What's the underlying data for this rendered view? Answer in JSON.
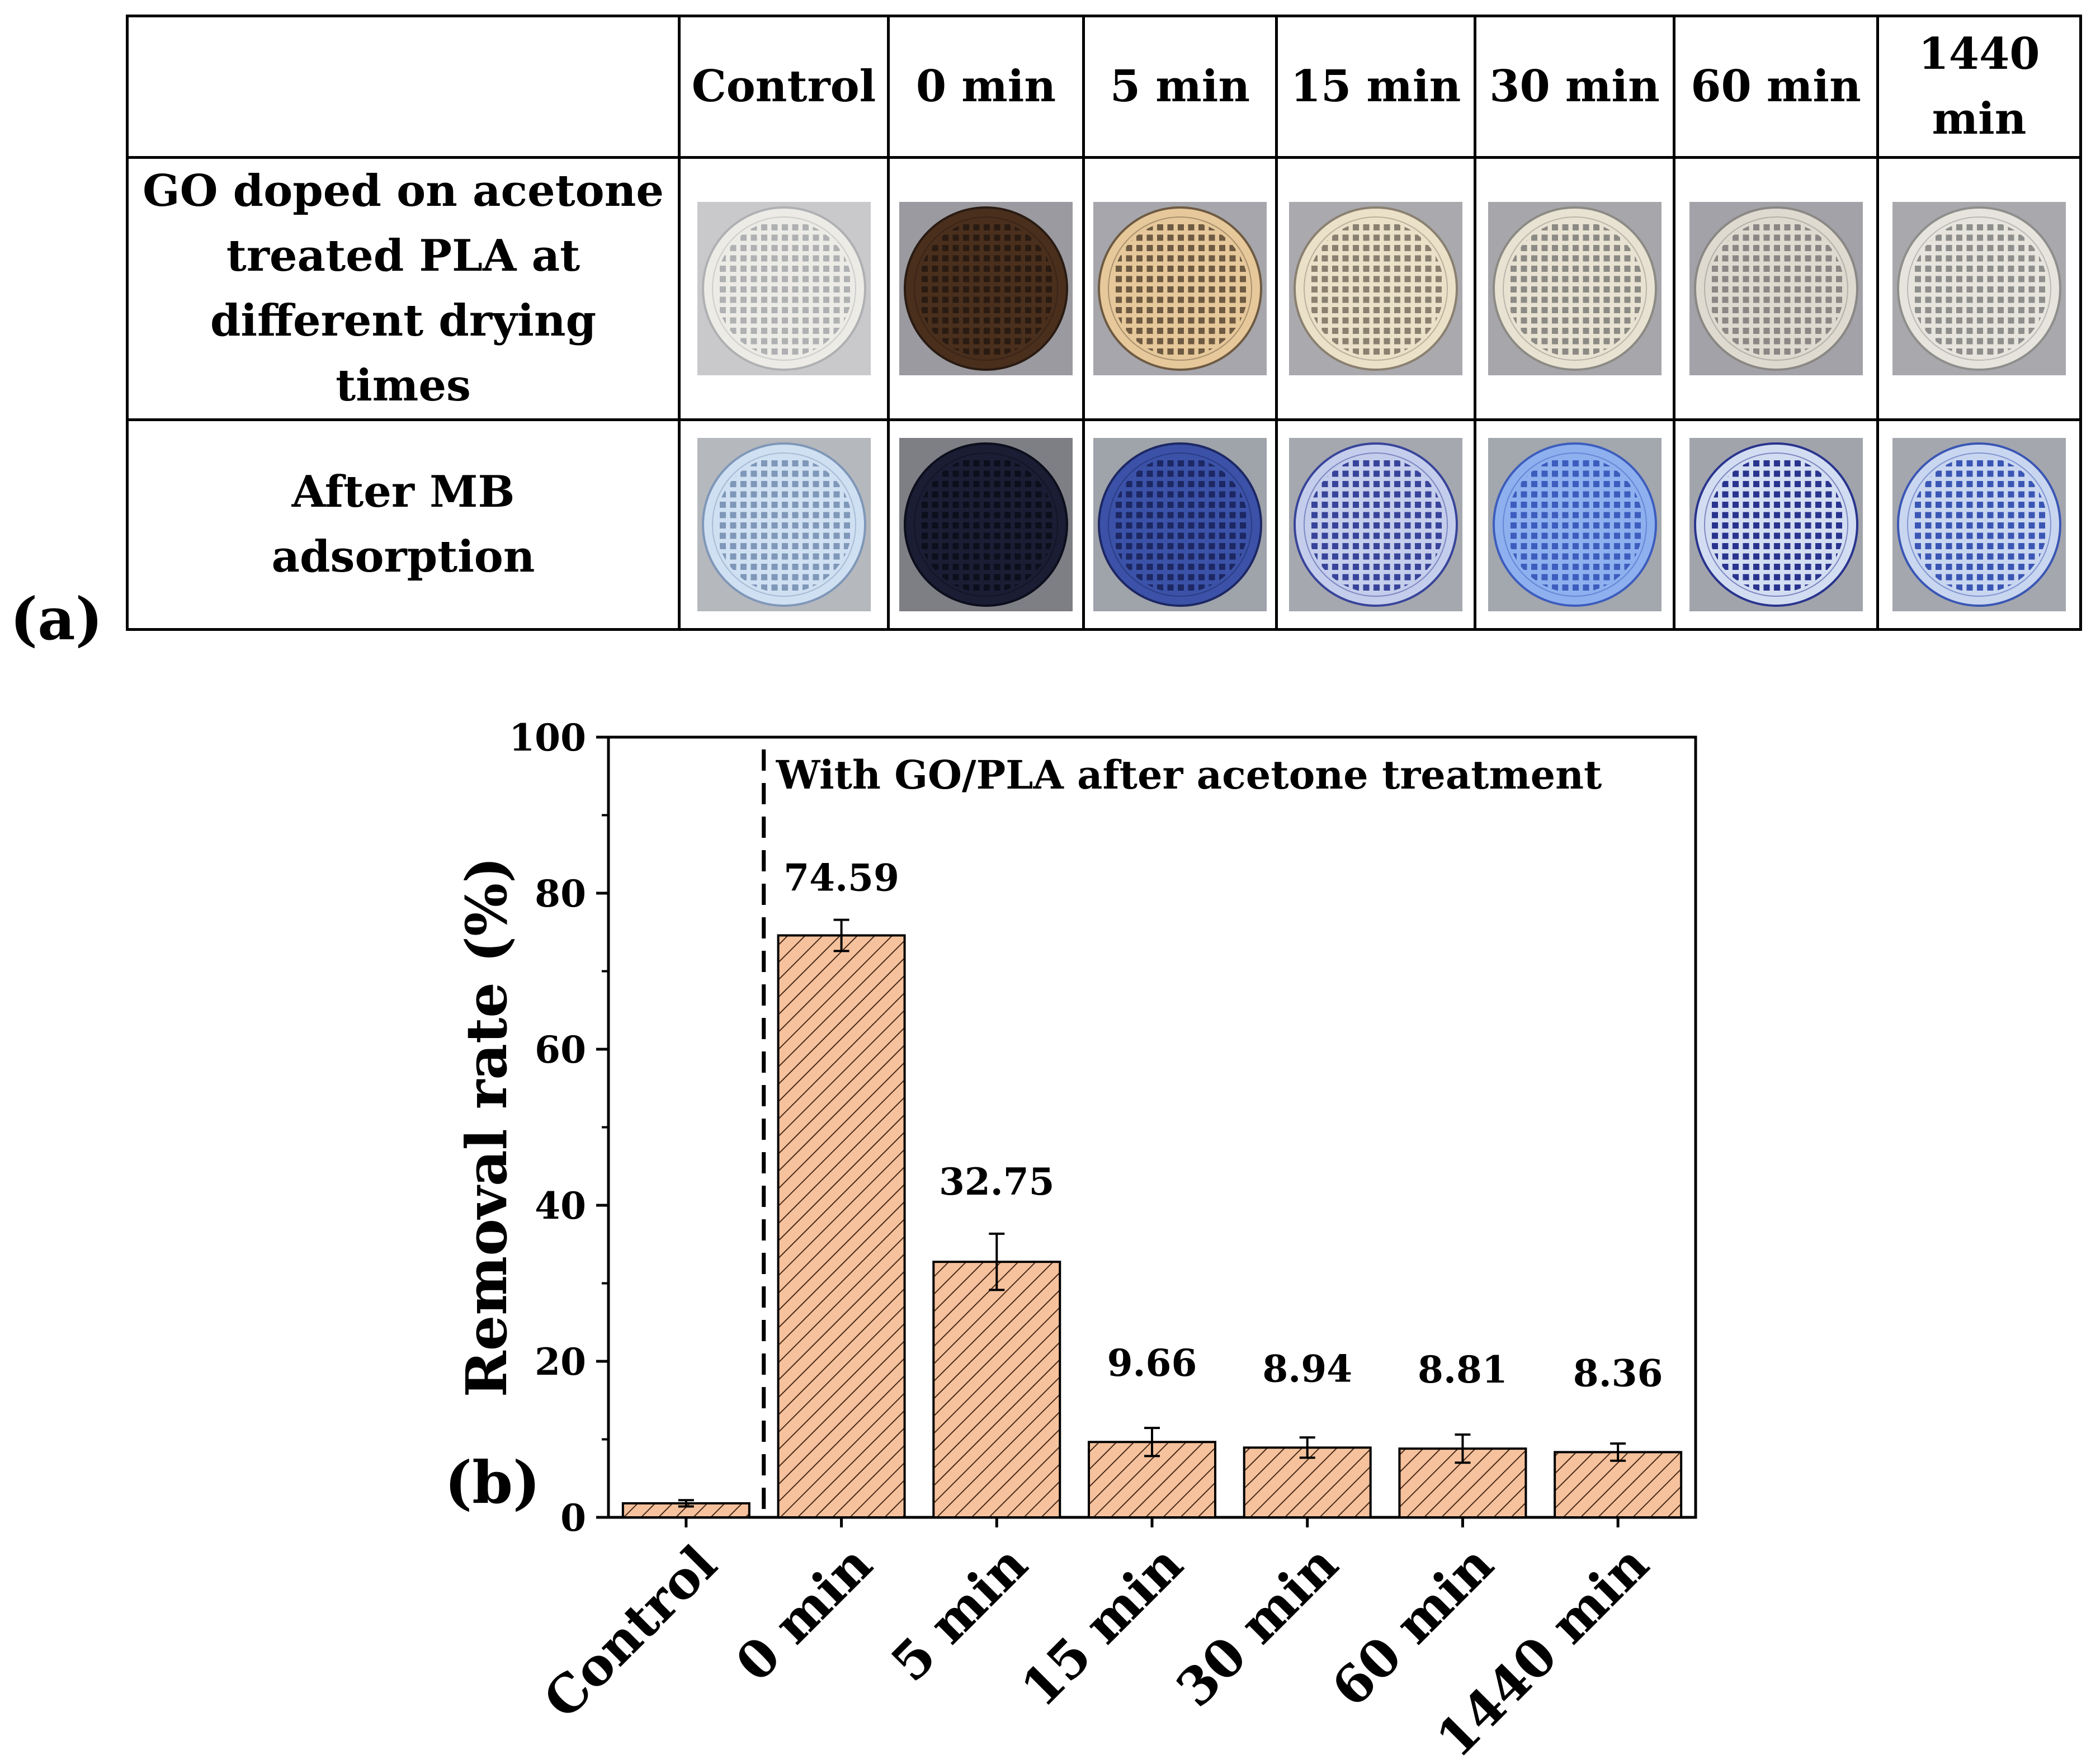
{
  "panel_a": {
    "label": "(a)",
    "header": [
      "",
      "Control",
      "0 min",
      "5 min",
      "15 min",
      "30 min",
      "60 min",
      "1440 min"
    ],
    "rows": [
      {
        "label": "GO doped on acetone treated PLA at different drying times",
        "samples": [
          {
            "name": "Control photo",
            "bg": "#c9c9cc",
            "fill": "#ecebe6",
            "holes": "#aeb0b2"
          },
          {
            "name": "0 min photo",
            "bg": "#9a9aa0",
            "fill": "#4a2f1d",
            "holes": "#2a1b12"
          },
          {
            "name": "5 min photo",
            "bg": "#a6a6ac",
            "fill": "#e6c89a",
            "holes": "#6e5a42"
          },
          {
            "name": "15 min photo",
            "bg": "#a9a9ae",
            "fill": "#ebe0c8",
            "holes": "#8a8070"
          },
          {
            "name": "30 min photo",
            "bg": "#a6a6ab",
            "fill": "#e8e2d2",
            "holes": "#8c8a84"
          },
          {
            "name": "60 min photo",
            "bg": "#a2a2a8",
            "fill": "#dedad0",
            "holes": "#8a8784"
          },
          {
            "name": "1440 min photo",
            "bg": "#a8a8ad",
            "fill": "#e6e4dc",
            "holes": "#8e8e8c"
          }
        ]
      },
      {
        "label": "After MB adsorption",
        "samples": [
          {
            "name": "Control MB photo",
            "bg": "#b5b8bd",
            "fill": "#cfe0f2",
            "holes": "#7f97b8"
          },
          {
            "name": "0 min MB photo",
            "bg": "#7e7f85",
            "fill": "#1a1d33",
            "holes": "#0c0e1c"
          },
          {
            "name": "5 min MB photo",
            "bg": "#9fa3aa",
            "fill": "#3b52a8",
            "holes": "#1c2763"
          },
          {
            "name": "15 min MB photo",
            "bg": "#a5a8ae",
            "fill": "#c4cdeb",
            "holes": "#38449a"
          },
          {
            "name": "30 min MB photo",
            "bg": "#a3a7ae",
            "fill": "#8fb0ef",
            "holes": "#3c5dbd"
          },
          {
            "name": "60 min MB photo",
            "bg": "#a1a4ab",
            "fill": "#d3ddf2",
            "holes": "#29348e"
          },
          {
            "name": "1440 min MB photo",
            "bg": "#a4a7ae",
            "fill": "#c9d6f0",
            "holes": "#3a56b4"
          }
        ]
      }
    ]
  },
  "panel_b": {
    "label": "(b)"
  },
  "chart_data": {
    "type": "bar",
    "categories": [
      "Control",
      "0 min",
      "5 min",
      "15 min",
      "30 min",
      "60 min",
      "1440 min"
    ],
    "values": [
      1.8,
      74.59,
      32.75,
      9.66,
      8.94,
      8.81,
      8.36
    ],
    "errors": [
      0.4,
      2.0,
      3.6,
      1.8,
      1.3,
      1.8,
      1.1
    ],
    "data_labels": [
      "",
      "74.59",
      "32.75",
      "9.66",
      "8.94",
      "8.81",
      "8.36"
    ],
    "ylabel": "Removal rate (%)",
    "xlabel": "",
    "ylim": [
      0,
      100
    ],
    "yticks": [
      0,
      20,
      40,
      60,
      80,
      100
    ],
    "annotation": "With GO/PLA after acetone treatment",
    "bar_color": "#f5c29d",
    "hatch_color": "#4a2a18",
    "grid": false
  }
}
